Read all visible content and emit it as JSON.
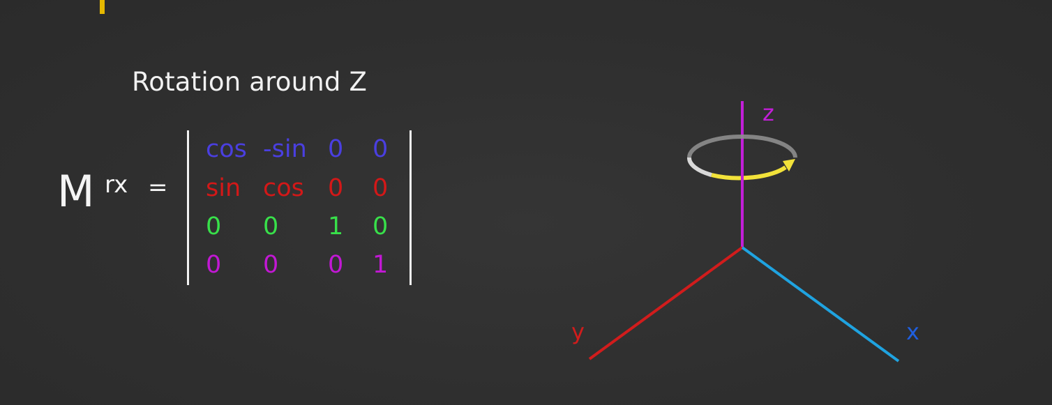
{
  "title": "Rotation around Z",
  "matrix": {
    "symbol": "M",
    "superscript": "rx",
    "equals": "=",
    "rows": [
      {
        "cells": [
          "cos",
          "-sin",
          "0",
          "0"
        ],
        "color": "#4a3fe0"
      },
      {
        "cells": [
          "sin",
          "cos",
          "0",
          "0"
        ],
        "color": "#d31818"
      },
      {
        "cells": [
          "0",
          "0",
          "1",
          "0"
        ],
        "color": "#38e04a"
      },
      {
        "cells": [
          "0",
          "0",
          "0",
          "1"
        ],
        "color": "#c218d4"
      }
    ]
  },
  "axes": {
    "z": {
      "label": "z",
      "color": "#c21fd8"
    },
    "y": {
      "label": "y",
      "color": "#d11c1c"
    },
    "x": {
      "label": "x",
      "color": "#1fa3e0"
    },
    "x_label_color": "#1f5fe0",
    "rotation_arrow_color": "#f2e23a",
    "rotation_ring_color": "#d9d9d9"
  }
}
